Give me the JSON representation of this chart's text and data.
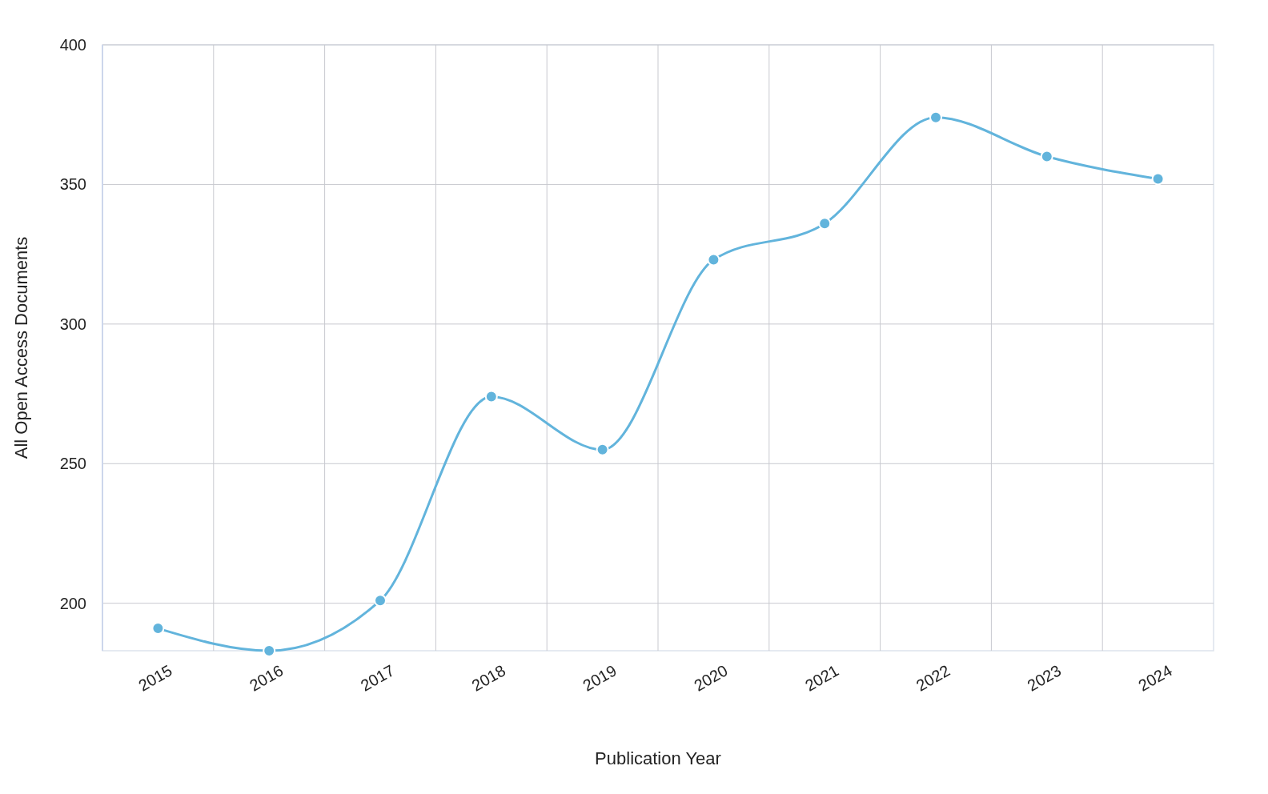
{
  "chart_data": {
    "type": "line",
    "xlabel": "Publication Year",
    "ylabel": "All Open Access Documents",
    "categories": [
      "2015",
      "2016",
      "2017",
      "2018",
      "2019",
      "2020",
      "2021",
      "2022",
      "2023",
      "2024"
    ],
    "series": [
      {
        "color": "#62b4dc",
        "values": [
          191,
          183,
          201,
          274,
          255,
          323,
          336,
          374,
          360,
          352
        ]
      }
    ],
    "ylim": [
      183,
      400
    ],
    "yticks": [
      200,
      250,
      300,
      350,
      400
    ],
    "grid": true,
    "marker": "circle"
  }
}
